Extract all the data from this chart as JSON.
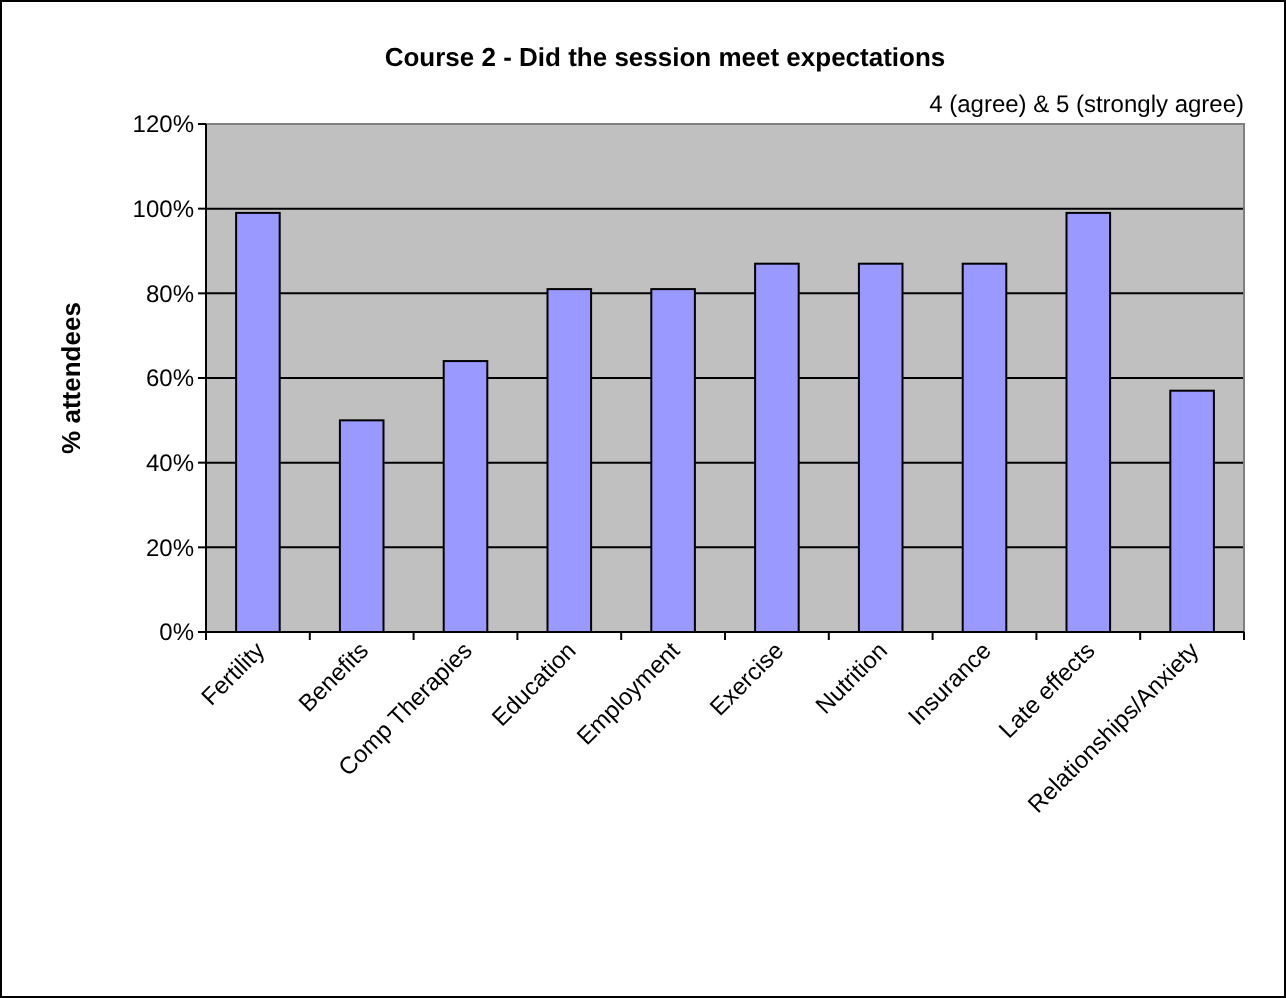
{
  "chart_data": {
    "type": "bar",
    "title": "Course 2 - Did the session meet expectations",
    "subtitle": "4 (agree) & 5 (strongly agree)",
    "ylabel": "% attendees",
    "categories": [
      "Fertility",
      "Benefits",
      "Comp Therapies",
      "Education",
      "Employment",
      "Exercise",
      "Nutrition",
      "Insurance",
      "Late effects",
      "Relationships/Anxiety"
    ],
    "values": [
      99,
      50,
      64,
      81,
      81,
      87,
      87,
      87,
      99,
      57
    ],
    "color": "#9999ff",
    "ylim": [
      0,
      120
    ],
    "yticks": [
      {
        "value": 0,
        "label": "0%"
      },
      {
        "value": 20,
        "label": "20%"
      },
      {
        "value": 40,
        "label": "40%"
      },
      {
        "value": 60,
        "label": "60%"
      },
      {
        "value": 80,
        "label": "80%"
      },
      {
        "value": 100,
        "label": "100%"
      },
      {
        "value": 120,
        "label": "120%"
      }
    ],
    "grid": "y"
  }
}
